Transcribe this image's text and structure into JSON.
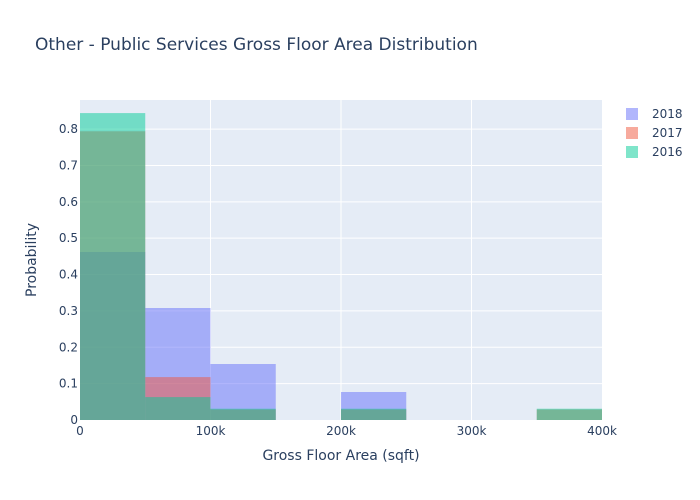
{
  "chart_data": {
    "type": "histogram",
    "title": "Other - Public Services Gross Floor Area Distribution",
    "xlabel": "Gross Floor Area (sqft)",
    "ylabel": "Probability",
    "xlim": [
      0,
      400000
    ],
    "ylim": [
      0,
      0.88
    ],
    "x_ticks": [
      0,
      100000,
      200000,
      300000,
      400000
    ],
    "x_tick_labels": [
      "0",
      "100k",
      "200k",
      "300k",
      "400k"
    ],
    "y_ticks": [
      0,
      0.1,
      0.2,
      0.3,
      0.4,
      0.5,
      0.6,
      0.7,
      0.8
    ],
    "y_tick_labels": [
      "0",
      "0.1",
      "0.2",
      "0.3",
      "0.4",
      "0.5",
      "0.6",
      "0.7",
      "0.8"
    ],
    "grid": true,
    "legend_position": "top-right",
    "barmode": "overlay",
    "series": [
      {
        "name": "2018",
        "color": "#636efa",
        "bins": [
          {
            "x0": 0,
            "x1": 50000,
            "value": 0.462
          },
          {
            "x0": 50000,
            "x1": 100000,
            "value": 0.308
          },
          {
            "x0": 100000,
            "x1": 150000,
            "value": 0.154
          },
          {
            "x0": 200000,
            "x1": 250000,
            "value": 0.077
          }
        ]
      },
      {
        "name": "2017",
        "color": "#ef553b",
        "bins": [
          {
            "x0": 0,
            "x1": 50000,
            "value": 0.794
          },
          {
            "x0": 50000,
            "x1": 100000,
            "value": 0.118
          },
          {
            "x0": 100000,
            "x1": 150000,
            "value": 0.029
          },
          {
            "x0": 200000,
            "x1": 250000,
            "value": 0.029
          },
          {
            "x0": 350000,
            "x1": 400000,
            "value": 0.029
          }
        ]
      },
      {
        "name": "2016",
        "color": "#00cc96",
        "bins": [
          {
            "x0": 0,
            "x1": 50000,
            "value": 0.844
          },
          {
            "x0": 50000,
            "x1": 100000,
            "value": 0.063
          },
          {
            "x0": 100000,
            "x1": 150000,
            "value": 0.031
          },
          {
            "x0": 200000,
            "x1": 250000,
            "value": 0.031
          },
          {
            "x0": 350000,
            "x1": 400000,
            "value": 0.031
          }
        ]
      }
    ]
  }
}
